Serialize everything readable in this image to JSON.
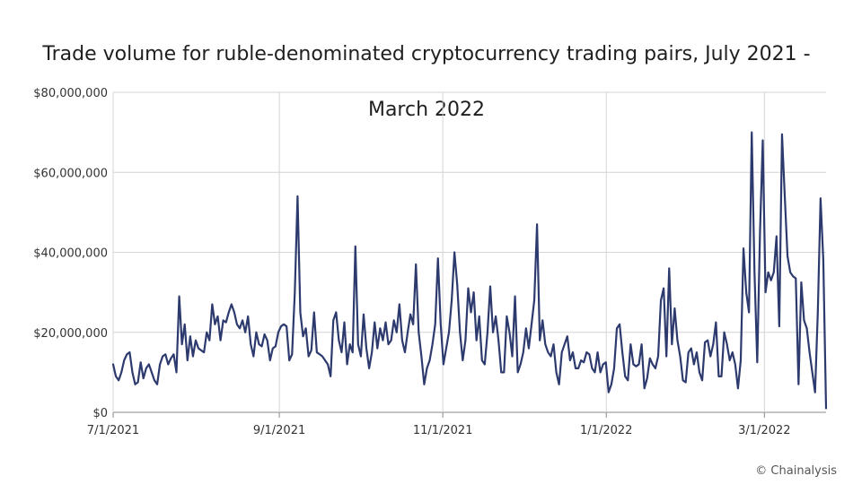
{
  "chart_data": {
    "type": "line",
    "title": "Trade volume for ruble-denominated cryptocurrency trading pairs, July 2021 - March 2022",
    "title_lines": [
      "Trade volume for ruble-denominated cryptocurrency trading pairs, July 2021 -",
      "March 2022"
    ],
    "xlabel": "",
    "ylabel": "",
    "x_start": "2021-07-01",
    "x_end": "2022-03-24",
    "xlim": [
      "2021-07-01",
      "2022-03-24"
    ],
    "ylim": [
      0,
      80000000
    ],
    "yticks": [
      0,
      20000000,
      40000000,
      60000000,
      80000000
    ],
    "ytick_labels": [
      "$0",
      "$20,000,000",
      "$40,000,000",
      "$60,000,000",
      "$80,000,000"
    ],
    "xticks": [
      "2021-07-01",
      "2021-09-01",
      "2021-11-01",
      "2022-01-01",
      "2022-03-01"
    ],
    "xtick_labels": [
      "7/1/2021",
      "9/1/2021",
      "11/1/2021",
      "1/1/2022",
      "3/1/2022"
    ],
    "grid": true,
    "line_color": "#2d3a6e",
    "series": [
      {
        "values": [
          12000000,
          9000000,
          8000000,
          10000000,
          13000000,
          14500000,
          15000000,
          10000000,
          7000000,
          7500000,
          12500000,
          8500000,
          11000000,
          12000000,
          10000000,
          8000000,
          7000000,
          12000000,
          14000000,
          14500000,
          12000000,
          13500000,
          14500000,
          10000000,
          29000000,
          17000000,
          22000000,
          13000000,
          19000000,
          14000000,
          18000000,
          16000000,
          15500000,
          15000000,
          20000000,
          18000000,
          27000000,
          22000000,
          24000000,
          18000000,
          23000000,
          22500000,
          25000000,
          27000000,
          25000000,
          22000000,
          21000000,
          23000000,
          20000000,
          24000000,
          17000000,
          14000000,
          20000000,
          17000000,
          16500000,
          19500000,
          18000000,
          13000000,
          16000000,
          16500000,
          20000000,
          21500000,
          22000000,
          21500000,
          13000000,
          14500000,
          30000000,
          54000000,
          25000000,
          19000000,
          21000000,
          14000000,
          15500000,
          25000000,
          15000000,
          14500000,
          14000000,
          13000000,
          12000000,
          9000000,
          23000000,
          25000000,
          18000000,
          15000000,
          22500000,
          12000000,
          17000000,
          15000000,
          41500000,
          17000000,
          14000000,
          24500000,
          16000000,
          11000000,
          15000000,
          22500000,
          16000000,
          21000000,
          18000000,
          22500000,
          17000000,
          18000000,
          23000000,
          20000000,
          27000000,
          18000000,
          15000000,
          20000000,
          24500000,
          22000000,
          37000000,
          20000000,
          14000000,
          7000000,
          11000000,
          13000000,
          17000000,
          22000000,
          38500000,
          22000000,
          12000000,
          16000000,
          20000000,
          28000000,
          40000000,
          32000000,
          20000000,
          13000000,
          18000000,
          31000000,
          25000000,
          30000000,
          18000000,
          24000000,
          13000000,
          12000000,
          20000000,
          31500000,
          20000000,
          24000000,
          18000000,
          10000000,
          10000000,
          24000000,
          20000000,
          14000000,
          29000000,
          10000000,
          12000000,
          15000000,
          21000000,
          16000000,
          22000000,
          28000000,
          47000000,
          18000000,
          23000000,
          17000000,
          15000000,
          14000000,
          17000000,
          10000000,
          7000000,
          15000000,
          17000000,
          19000000,
          13000000,
          15000000,
          11000000,
          11000000,
          13000000,
          12500000,
          15000000,
          14500000,
          11000000,
          10000000,
          15000000,
          10000000,
          12000000,
          12500000,
          5000000,
          7000000,
          11000000,
          21000000,
          22000000,
          15000000,
          9000000,
          8000000,
          17000000,
          12000000,
          11500000,
          12000000,
          17000000,
          6000000,
          8500000,
          13500000,
          12000000,
          11000000,
          14000000,
          28000000,
          31000000,
          14000000,
          36000000,
          17000000,
          26000000,
          18000000,
          14000000,
          8000000,
          7500000,
          15000000,
          16000000,
          12000000,
          15000000,
          10000000,
          8000000,
          17500000,
          18000000,
          14000000,
          17000000,
          22500000,
          9000000,
          9000000,
          20000000,
          17000000,
          13000000,
          15000000,
          12000000,
          6000000,
          13000000,
          41000000,
          30000000,
          25000000,
          70000000,
          35000000,
          12500000,
          45000000,
          68000000,
          30000000,
          35000000,
          33000000,
          35000000,
          44000000,
          21500000,
          69500000,
          54000000,
          39000000,
          35000000,
          34000000,
          33500000,
          7000000,
          32500000,
          23000000,
          21000000,
          15000000,
          10000000,
          5000000,
          25000000,
          53500000,
          38000000,
          1000000
        ]
      }
    ]
  },
  "credit": "© Chainalysis"
}
